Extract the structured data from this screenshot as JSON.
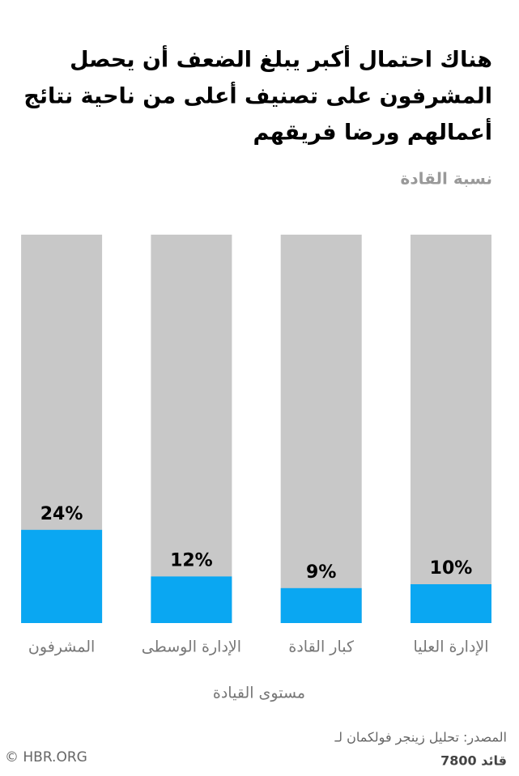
{
  "chart_data": {
    "type": "bar",
    "title": [
      "هناك احتمال أكبر يبلغ الضعف أن يحصل",
      "المشرفون على تصنيف أعلى من ناحية نتائج",
      "أعمالهم ورضا فريقهم"
    ],
    "subtitle": "نسبة القادة",
    "x_label": "مستوى القيادة",
    "categories": [
      "الإدارة العليا",
      "كبار القادة",
      "الإدارة الوسطى",
      "المشرفون"
    ],
    "values": [
      10,
      9,
      12,
      24
    ],
    "value_labels": [
      "10%",
      "9%",
      "12%",
      "24%"
    ],
    "color": "#0aa7f2",
    "track_color": "#c8c8c8",
    "ylim": [
      0,
      100
    ],
    "source": [
      "المصدر: تحليل زينجر فولكمان لـ",
      "7800 قائد"
    ],
    "credit": "© HBR.ORG"
  }
}
